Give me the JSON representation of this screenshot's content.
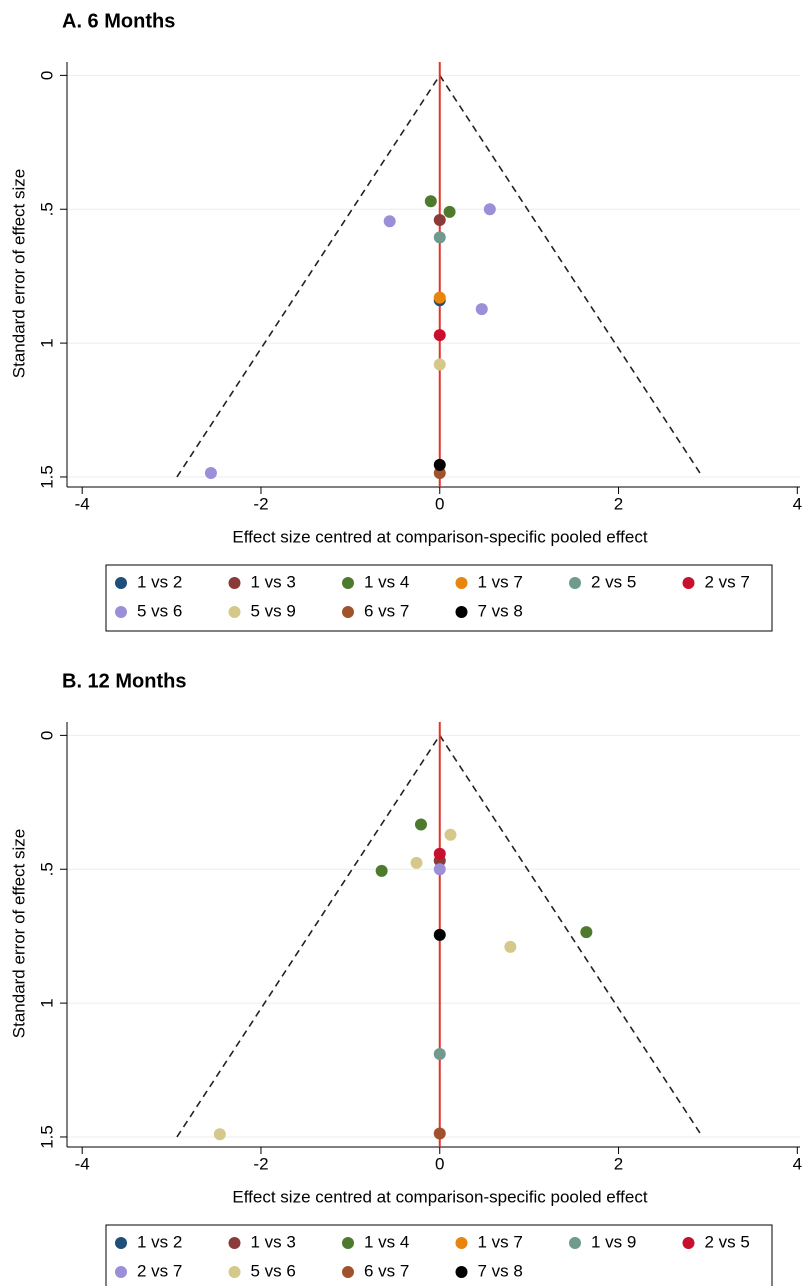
{
  "chart_data": [
    {
      "type": "scatter",
      "title": "A. 6 Months",
      "xlabel": "Effect size centred at comparison-specific pooled effect",
      "ylabel": "Standard error of effect size",
      "xlim": [
        -4.17,
        4.03
      ],
      "ylim": [
        -0.05,
        1.53
      ],
      "y_reversed": true,
      "xticks": [
        -4,
        -2,
        0,
        2,
        4
      ],
      "yticks": [
        0,
        {
          "value": 0.5,
          "label": ".5"
        },
        1,
        {
          "value": 1.5,
          "label": "1.5"
        }
      ],
      "grid": true,
      "reference_line": 0,
      "reference_color": "#e0352b",
      "funnel": {
        "x": [
          -2.94,
          0,
          2.94
        ],
        "y": [
          1.5,
          0,
          1.5
        ]
      },
      "series": [
        {
          "name": "1 vs 2",
          "color": "#1f4e79",
          "x": [
            0
          ],
          "y": [
            0.84
          ]
        },
        {
          "name": "1 vs 3",
          "color": "#8b3a3a",
          "x": [
            0
          ],
          "y": [
            0.54
          ]
        },
        {
          "name": "1 vs 4",
          "color": "#4e7a2e",
          "x": [
            -0.1,
            0.11
          ],
          "y": [
            0.47,
            0.51
          ]
        },
        {
          "name": "1 vs 7",
          "color": "#e8850c",
          "x": [
            0
          ],
          "y": [
            0.83
          ]
        },
        {
          "name": "2 vs 5",
          "color": "#6f9a8d",
          "x": [
            0
          ],
          "y": [
            0.605
          ]
        },
        {
          "name": "2 vs 7",
          "color": "#c8102e",
          "x": [
            0
          ],
          "y": [
            0.97
          ]
        },
        {
          "name": "5 vs 6",
          "color": "#9b8fd8",
          "x": [
            -0.56,
            0.56,
            0.47,
            -2.56
          ],
          "y": [
            0.545,
            0.5,
            0.873,
            1.485
          ]
        },
        {
          "name": "5 vs 9",
          "color": "#d4c88a",
          "x": [
            0
          ],
          "y": [
            1.08
          ]
        },
        {
          "name": "6 vs 7",
          "color": "#a0522d",
          "x": [
            0
          ],
          "y": [
            1.485
          ]
        },
        {
          "name": "7 vs 8",
          "color": "#000000",
          "x": [
            0
          ],
          "y": [
            1.455
          ]
        }
      ]
    },
    {
      "type": "scatter",
      "title": "B. 12 Months",
      "xlabel": "Effect size centred at comparison-specific pooled effect",
      "ylabel": "Standard error of effect size",
      "xlim": [
        -4.17,
        4.03
      ],
      "ylim": [
        -0.05,
        1.53
      ],
      "y_reversed": true,
      "xticks": [
        -4,
        -2,
        0,
        2,
        4
      ],
      "yticks": [
        0,
        {
          "value": 0.5,
          "label": ".5"
        },
        1,
        {
          "value": 1.5,
          "label": "1.5"
        }
      ],
      "grid": true,
      "reference_line": 0,
      "reference_color": "#e0352b",
      "funnel": {
        "x": [
          -2.94,
          0,
          2.94
        ],
        "y": [
          1.5,
          0,
          1.5
        ]
      },
      "series": [
        {
          "name": "1 vs 2",
          "color": "#1f4e79",
          "x": [],
          "y": []
        },
        {
          "name": "1 vs 3",
          "color": "#8b3a3a",
          "x": [
            0
          ],
          "y": [
            0.468
          ]
        },
        {
          "name": "1 vs 4",
          "color": "#4e7a2e",
          "x": [
            -0.21,
            -0.65,
            1.64
          ],
          "y": [
            0.333,
            0.506,
            0.735
          ]
        },
        {
          "name": "1 vs 7",
          "color": "#e8850c",
          "x": [],
          "y": []
        },
        {
          "name": "1 vs 9",
          "color": "#6f9a8d",
          "x": [
            0
          ],
          "y": [
            1.19
          ]
        },
        {
          "name": "2 vs 5",
          "color": "#c8102e",
          "x": [
            0
          ],
          "y": [
            0.442
          ]
        },
        {
          "name": "2 vs 7",
          "color": "#9b8fd8",
          "x": [
            0
          ],
          "y": [
            0.5
          ]
        },
        {
          "name": "5 vs 6",
          "color": "#d4c88a",
          "x": [
            0.12,
            -0.26,
            0.79,
            -2.46
          ],
          "y": [
            0.371,
            0.476,
            0.79,
            1.49
          ]
        },
        {
          "name": "6 vs 7",
          "color": "#a0522d",
          "x": [
            0
          ],
          "y": [
            1.487
          ]
        },
        {
          "name": "7 vs 8",
          "color": "#000000",
          "x": [
            0
          ],
          "y": [
            0.745
          ]
        }
      ]
    }
  ]
}
